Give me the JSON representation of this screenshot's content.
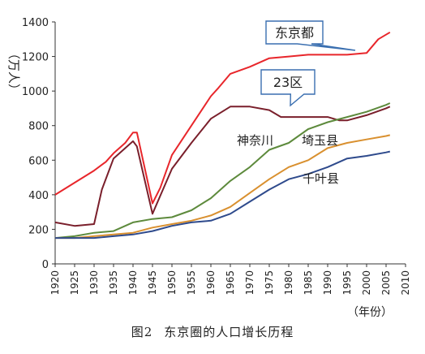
{
  "caption": {
    "figure_no": "图2",
    "text": "东京圈的人口增长历程"
  },
  "chart_data": {
    "type": "line",
    "ylabel": "（万人）",
    "xlabel": "（年份）",
    "ylim": [
      0,
      1400
    ],
    "yticks": [
      0,
      200,
      400,
      600,
      800,
      1000,
      1200,
      1400
    ],
    "xlim": [
      1920,
      2010
    ],
    "xticks": [
      1920,
      1925,
      1930,
      1935,
      1940,
      1945,
      1950,
      1955,
      1960,
      1965,
      1970,
      1975,
      1980,
      1985,
      1990,
      1995,
      2000,
      2005,
      2010
    ],
    "grid": false,
    "series": [
      {
        "name": "东京都",
        "color": "#e8262b",
        "label_style": "callout",
        "points": [
          [
            1920,
            400
          ],
          [
            1925,
            470
          ],
          [
            1930,
            540
          ],
          [
            1933,
            590
          ],
          [
            1935,
            640
          ],
          [
            1938,
            700
          ],
          [
            1940,
            760
          ],
          [
            1941,
            760
          ],
          [
            1945,
            350
          ],
          [
            1947,
            440
          ],
          [
            1950,
            630
          ],
          [
            1955,
            800
          ],
          [
            1960,
            970
          ],
          [
            1962,
            1020
          ],
          [
            1965,
            1100
          ],
          [
            1970,
            1140
          ],
          [
            1975,
            1190
          ],
          [
            1980,
            1200
          ],
          [
            1985,
            1210
          ],
          [
            1990,
            1210
          ],
          [
            1995,
            1210
          ],
          [
            2000,
            1220
          ],
          [
            2003,
            1300
          ],
          [
            2006,
            1340
          ]
        ]
      },
      {
        "name": "23区",
        "color": "#7a1f2b",
        "label_style": "callout",
        "points": [
          [
            1920,
            240
          ],
          [
            1925,
            220
          ],
          [
            1930,
            230
          ],
          [
            1932,
            430
          ],
          [
            1935,
            610
          ],
          [
            1940,
            710
          ],
          [
            1941,
            680
          ],
          [
            1945,
            290
          ],
          [
            1950,
            550
          ],
          [
            1955,
            700
          ],
          [
            1960,
            840
          ],
          [
            1965,
            910
          ],
          [
            1970,
            910
          ],
          [
            1975,
            890
          ],
          [
            1978,
            850
          ],
          [
            1980,
            850
          ],
          [
            1985,
            850
          ],
          [
            1990,
            850
          ],
          [
            1993,
            830
          ],
          [
            1995,
            830
          ],
          [
            2000,
            860
          ],
          [
            2005,
            900
          ],
          [
            2006,
            910
          ]
        ]
      },
      {
        "name": "神奈川",
        "color": "#5d8a3c",
        "label_style": "text",
        "points": [
          [
            1920,
            150
          ],
          [
            1925,
            160
          ],
          [
            1930,
            180
          ],
          [
            1935,
            190
          ],
          [
            1940,
            240
          ],
          [
            1945,
            260
          ],
          [
            1950,
            270
          ],
          [
            1955,
            310
          ],
          [
            1960,
            380
          ],
          [
            1965,
            480
          ],
          [
            1970,
            560
          ],
          [
            1975,
            660
          ],
          [
            1980,
            700
          ],
          [
            1985,
            780
          ],
          [
            1990,
            820
          ],
          [
            1995,
            850
          ],
          [
            2000,
            880
          ],
          [
            2005,
            920
          ],
          [
            2006,
            930
          ]
        ]
      },
      {
        "name": "埼玉县",
        "color": "#d9902f",
        "label_style": "text",
        "points": [
          [
            1920,
            150
          ],
          [
            1925,
            150
          ],
          [
            1930,
            160
          ],
          [
            1935,
            170
          ],
          [
            1940,
            180
          ],
          [
            1945,
            210
          ],
          [
            1950,
            230
          ],
          [
            1955,
            250
          ],
          [
            1960,
            280
          ],
          [
            1965,
            330
          ],
          [
            1970,
            410
          ],
          [
            1975,
            490
          ],
          [
            1980,
            560
          ],
          [
            1985,
            600
          ],
          [
            1990,
            670
          ],
          [
            1995,
            700
          ],
          [
            2000,
            720
          ],
          [
            2005,
            740
          ],
          [
            2006,
            745
          ]
        ]
      },
      {
        "name": "千叶县",
        "color": "#2e4a8c",
        "label_style": "text",
        "points": [
          [
            1920,
            150
          ],
          [
            1925,
            150
          ],
          [
            1930,
            150
          ],
          [
            1935,
            160
          ],
          [
            1940,
            170
          ],
          [
            1945,
            190
          ],
          [
            1950,
            220
          ],
          [
            1955,
            240
          ],
          [
            1960,
            250
          ],
          [
            1965,
            290
          ],
          [
            1970,
            360
          ],
          [
            1975,
            430
          ],
          [
            1980,
            490
          ],
          [
            1985,
            520
          ],
          [
            1990,
            560
          ],
          [
            1995,
            610
          ],
          [
            2000,
            625
          ],
          [
            2005,
            645
          ],
          [
            2006,
            650
          ]
        ]
      }
    ]
  }
}
